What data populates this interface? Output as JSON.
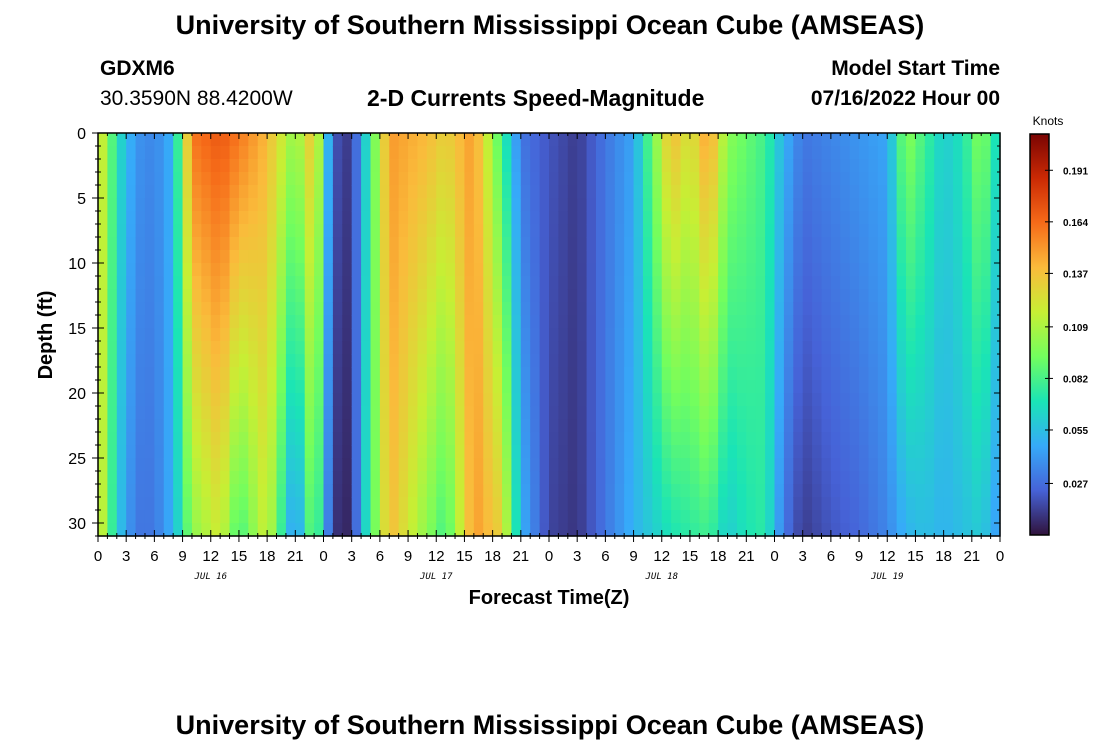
{
  "page": {
    "title": "University of Southern Mississippi Ocean Cube (AMSEAS)",
    "footer_title": "University of Southern Mississippi Ocean Cube (AMSEAS)",
    "station_id": "GDXM6",
    "coordinates": "30.3590N  88.4200W",
    "plot_title": "2-D Currents Speed-Magnitude",
    "model_start_label": "Model Start Time",
    "model_start_value": "07/16/2022 Hour 00"
  },
  "chart_data": {
    "type": "heatmap",
    "title": "2-D Currents Speed-Magnitude",
    "xlabel": "Forecast Time(Z)",
    "ylabel": "Depth (ft)",
    "x_ticks": [
      "0",
      "3",
      "6",
      "9",
      "12",
      "15",
      "18",
      "21",
      "0",
      "3",
      "6",
      "9",
      "12",
      "15",
      "18",
      "21",
      "0",
      "3",
      "6",
      "9",
      "12",
      "15",
      "18",
      "21",
      "0",
      "3",
      "6",
      "9",
      "12",
      "15",
      "18",
      "21",
      "0"
    ],
    "x_hours_range": [
      0,
      96
    ],
    "day_labels": [
      {
        "label": "JUL 16",
        "hour": 12
      },
      {
        "label": "JUL 17",
        "hour": 36
      },
      {
        "label": "JUL 18",
        "hour": 60
      },
      {
        "label": "JUL 19",
        "hour": 84
      }
    ],
    "y_ticks": [
      0,
      5,
      10,
      15,
      20,
      25,
      30
    ],
    "ylim": [
      0,
      31
    ],
    "colorbar": {
      "unit": "Knots",
      "range": [
        0,
        0.21
      ],
      "tick_labels": [
        "0.191",
        "0.164",
        "0.137",
        "0.109",
        "0.082",
        "0.055",
        "0.027"
      ],
      "tick_values": [
        0.191,
        0.164,
        0.137,
        0.109,
        0.082,
        0.055,
        0.027
      ],
      "colormap": [
        "#30123b",
        "#4662d7",
        "#36aaf9",
        "#1ae4b6",
        "#72fe5e",
        "#c7ef34",
        "#fabb3b",
        "#f66b19",
        "#cb2a04",
        "#7a0403"
      ]
    },
    "field_description": "speed magnitude (knots) vs forecast hour (0-96) and depth (0-31 ft)",
    "column_profiles": [
      {
        "hour": 0,
        "surface": 0.13,
        "bottom": 0.13
      },
      {
        "hour": 2,
        "surface": 0.07,
        "bottom": 0.06
      },
      {
        "hour": 4,
        "surface": 0.04,
        "bottom": 0.03
      },
      {
        "hour": 6,
        "surface": 0.035,
        "bottom": 0.03
      },
      {
        "hour": 8,
        "surface": 0.05,
        "bottom": 0.05
      },
      {
        "hour": 10,
        "surface": 0.16,
        "bottom": 0.1
      },
      {
        "hour": 13,
        "surface": 0.17,
        "bottom": 0.12
      },
      {
        "hour": 15,
        "surface": 0.16,
        "bottom": 0.08
      },
      {
        "hour": 18,
        "surface": 0.14,
        "bottom": 0.12
      },
      {
        "hour": 21,
        "surface": 0.1,
        "bottom": 0.035
      },
      {
        "hour": 23,
        "surface": 0.14,
        "bottom": 0.1
      },
      {
        "hour": 25,
        "surface": 0.02,
        "bottom": 0.01
      },
      {
        "hour": 27,
        "surface": 0.01,
        "bottom": 0.005
      },
      {
        "hour": 28,
        "surface": 0.045,
        "bottom": 0.05
      },
      {
        "hour": 31,
        "surface": 0.15,
        "bottom": 0.14
      },
      {
        "hour": 35,
        "surface": 0.14,
        "bottom": 0.1
      },
      {
        "hour": 37,
        "surface": 0.13,
        "bottom": 0.08
      },
      {
        "hour": 40,
        "surface": 0.15,
        "bottom": 0.15
      },
      {
        "hour": 43,
        "surface": 0.08,
        "bottom": 0.13
      },
      {
        "hour": 45,
        "surface": 0.03,
        "bottom": 0.05
      },
      {
        "hour": 48,
        "surface": 0.02,
        "bottom": 0.015
      },
      {
        "hour": 51,
        "surface": 0.012,
        "bottom": 0.01
      },
      {
        "hour": 54,
        "surface": 0.03,
        "bottom": 0.03
      },
      {
        "hour": 57,
        "surface": 0.045,
        "bottom": 0.05
      },
      {
        "hour": 61,
        "surface": 0.14,
        "bottom": 0.07
      },
      {
        "hour": 63,
        "surface": 0.12,
        "bottom": 0.075
      },
      {
        "hour": 65,
        "surface": 0.15,
        "bottom": 0.08
      },
      {
        "hour": 67,
        "surface": 0.1,
        "bottom": 0.06
      },
      {
        "hour": 69,
        "surface": 0.09,
        "bottom": 0.07
      },
      {
        "hour": 71,
        "surface": 0.08,
        "bottom": 0.075
      },
      {
        "hour": 73,
        "surface": 0.05,
        "bottom": 0.03
      },
      {
        "hour": 75,
        "surface": 0.03,
        "bottom": 0.012
      },
      {
        "hour": 78,
        "surface": 0.035,
        "bottom": 0.02
      },
      {
        "hour": 81,
        "surface": 0.04,
        "bottom": 0.025
      },
      {
        "hour": 84,
        "surface": 0.045,
        "bottom": 0.035
      },
      {
        "hour": 86,
        "surface": 0.1,
        "bottom": 0.05
      },
      {
        "hour": 88,
        "surface": 0.08,
        "bottom": 0.055
      },
      {
        "hour": 90,
        "surface": 0.06,
        "bottom": 0.05
      },
      {
        "hour": 92,
        "surface": 0.07,
        "bottom": 0.055
      },
      {
        "hour": 94,
        "surface": 0.1,
        "bottom": 0.06
      },
      {
        "hour": 96,
        "surface": 0.06,
        "bottom": 0.04
      }
    ]
  }
}
